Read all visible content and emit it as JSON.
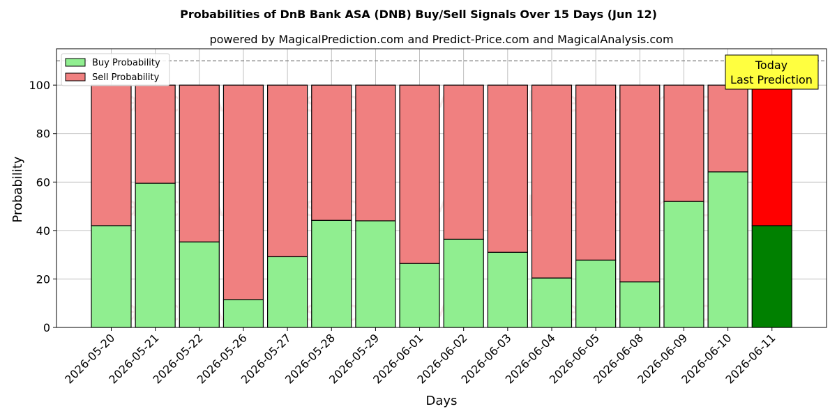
{
  "chart_data": {
    "type": "bar",
    "stacked": true,
    "title": "Probabilities of DnB Bank ASA (DNB) Buy/Sell Signals Over 15 Days (Jun 12)",
    "subtitle": "powered by MagicalPrediction.com and Predict-Price.com and MagicalAnalysis.com",
    "xlabel": "Days",
    "ylabel": "Probability",
    "ylim": [
      0,
      115
    ],
    "yticks": [
      0,
      20,
      40,
      60,
      80,
      100
    ],
    "reference_line": 110,
    "grid": true,
    "legend_position": "top-left",
    "categories": [
      "2026-05-20",
      "2026-05-21",
      "2026-05-22",
      "2026-05-26",
      "2026-05-27",
      "2026-05-28",
      "2026-05-29",
      "2026-06-01",
      "2026-06-02",
      "2026-06-03",
      "2026-06-04",
      "2026-06-05",
      "2026-06-08",
      "2026-06-09",
      "2026-06-10",
      "2026-06-11"
    ],
    "series": [
      {
        "name": "Buy Probability",
        "color": "#90ee90",
        "today_color": "#008000",
        "values": [
          42.0,
          59.5,
          35.3,
          11.5,
          29.2,
          44.2,
          44.0,
          26.4,
          36.4,
          31.0,
          20.4,
          27.8,
          18.8,
          52.0,
          64.2,
          42.0
        ]
      },
      {
        "name": "Sell Probability",
        "color": "#f08080",
        "today_color": "#ff0000",
        "values": [
          58.0,
          40.5,
          64.7,
          88.5,
          70.8,
          55.8,
          56.0,
          73.6,
          63.6,
          69.0,
          79.6,
          72.2,
          81.2,
          48.0,
          35.8,
          58.0
        ]
      }
    ],
    "annotation": {
      "line1": "Today",
      "line2": "Last Prediction",
      "background": "#ffff40"
    },
    "watermarks": [
      "MagicalAnalysis.com",
      "MagicalPrediction.com"
    ]
  }
}
